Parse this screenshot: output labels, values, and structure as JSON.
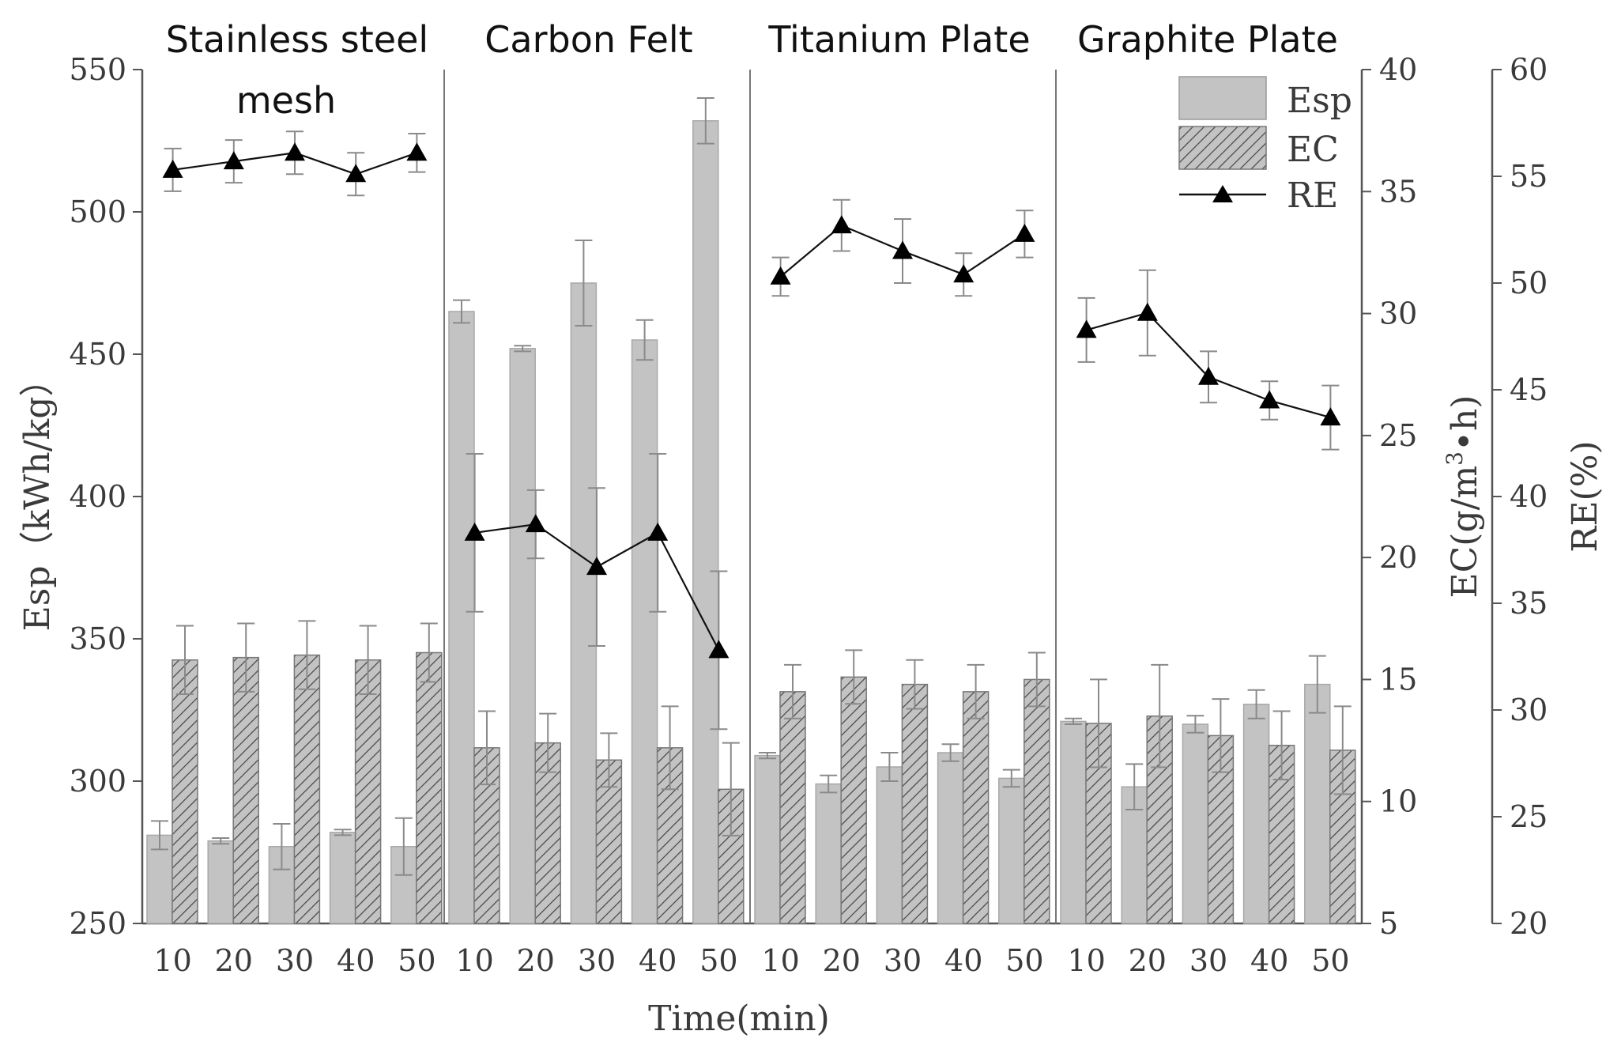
{
  "chart_data": {
    "type": "bar",
    "groups": [
      "Stainless steel",
      "Carbon Felt",
      "Titanium Plate",
      "Graphite Plate"
    ],
    "group_subtitle": "mesh",
    "categories": [
      "10",
      "20",
      "30",
      "40",
      "50"
    ],
    "xlabel": "Time(min)",
    "left_axis": {
      "label": "Esp（kWh/kg）",
      "ylim": [
        250,
        550
      ],
      "ticks": [
        250,
        300,
        350,
        400,
        450,
        500,
        550
      ]
    },
    "middle_axis": {
      "label_prefix": "EC(g/m",
      "label_sup": "3",
      "label_suffix": "•h)",
      "ylim": [
        5,
        40
      ],
      "ticks": [
        5,
        10,
        15,
        20,
        25,
        30,
        35,
        40
      ]
    },
    "right_axis": {
      "label": "RE(%)",
      "ylim": [
        20,
        60
      ],
      "ticks": [
        20,
        25,
        30,
        35,
        40,
        45,
        50,
        55,
        60
      ]
    },
    "series": [
      {
        "name": "Esp",
        "kind": "bar",
        "axis": "left",
        "style": "solid gray",
        "values": [
          [
            281,
            279,
            277,
            282,
            277
          ],
          [
            465,
            452,
            475,
            455,
            532
          ],
          [
            309,
            299,
            305,
            310,
            301
          ],
          [
            321,
            298,
            320,
            327,
            334
          ]
        ],
        "errors": [
          [
            5,
            1,
            8,
            1,
            10
          ],
          [
            4,
            1,
            15,
            7,
            8
          ],
          [
            1,
            3,
            5,
            3,
            3
          ],
          [
            1,
            8,
            3,
            5,
            10
          ]
        ]
      },
      {
        "name": "EC",
        "kind": "bar",
        "axis": "middle",
        "style": "hatched",
        "values": [
          [
            15.8,
            15.9,
            16.0,
            15.8,
            16.1
          ],
          [
            12.2,
            12.4,
            11.7,
            12.2,
            10.5
          ],
          [
            14.5,
            15.1,
            14.8,
            14.5,
            15.0
          ],
          [
            13.2,
            13.5,
            12.7,
            12.3,
            12.1
          ]
        ],
        "errors": [
          [
            1.4,
            1.4,
            1.4,
            1.4,
            1.2
          ],
          [
            1.5,
            1.2,
            1.1,
            1.7,
            1.9
          ],
          [
            1.1,
            1.1,
            1.0,
            1.1,
            1.1
          ],
          [
            1.8,
            2.1,
            1.5,
            1.4,
            1.8
          ]
        ]
      },
      {
        "name": "RE",
        "kind": "line",
        "axis": "right",
        "style": "black line with triangle markers",
        "values": [
          [
            55.3,
            55.7,
            56.1,
            55.1,
            56.1
          ],
          [
            38.3,
            38.7,
            36.7,
            38.3,
            32.8
          ],
          [
            50.3,
            52.7,
            51.5,
            50.4,
            52.3
          ],
          [
            47.8,
            48.6,
            45.6,
            44.5,
            43.7
          ]
        ],
        "errors": [
          [
            1.0,
            1.0,
            1.0,
            1.0,
            0.9
          ],
          [
            3.7,
            1.6,
            3.7,
            3.7,
            3.7
          ],
          [
            0.9,
            1.2,
            1.5,
            1.0,
            1.1
          ],
          [
            1.5,
            2.0,
            1.2,
            0.9,
            1.5
          ]
        ]
      }
    ],
    "legend": {
      "position": "top-right",
      "entries": [
        "Esp",
        "EC",
        "RE"
      ]
    },
    "colors": {
      "bar_fill": "#c3c3c3",
      "bar_edge": "#a8a8a8",
      "hatch": "#444444",
      "line": "#111111",
      "axis": "#555555",
      "error_bar": "#8a8a8a"
    }
  }
}
